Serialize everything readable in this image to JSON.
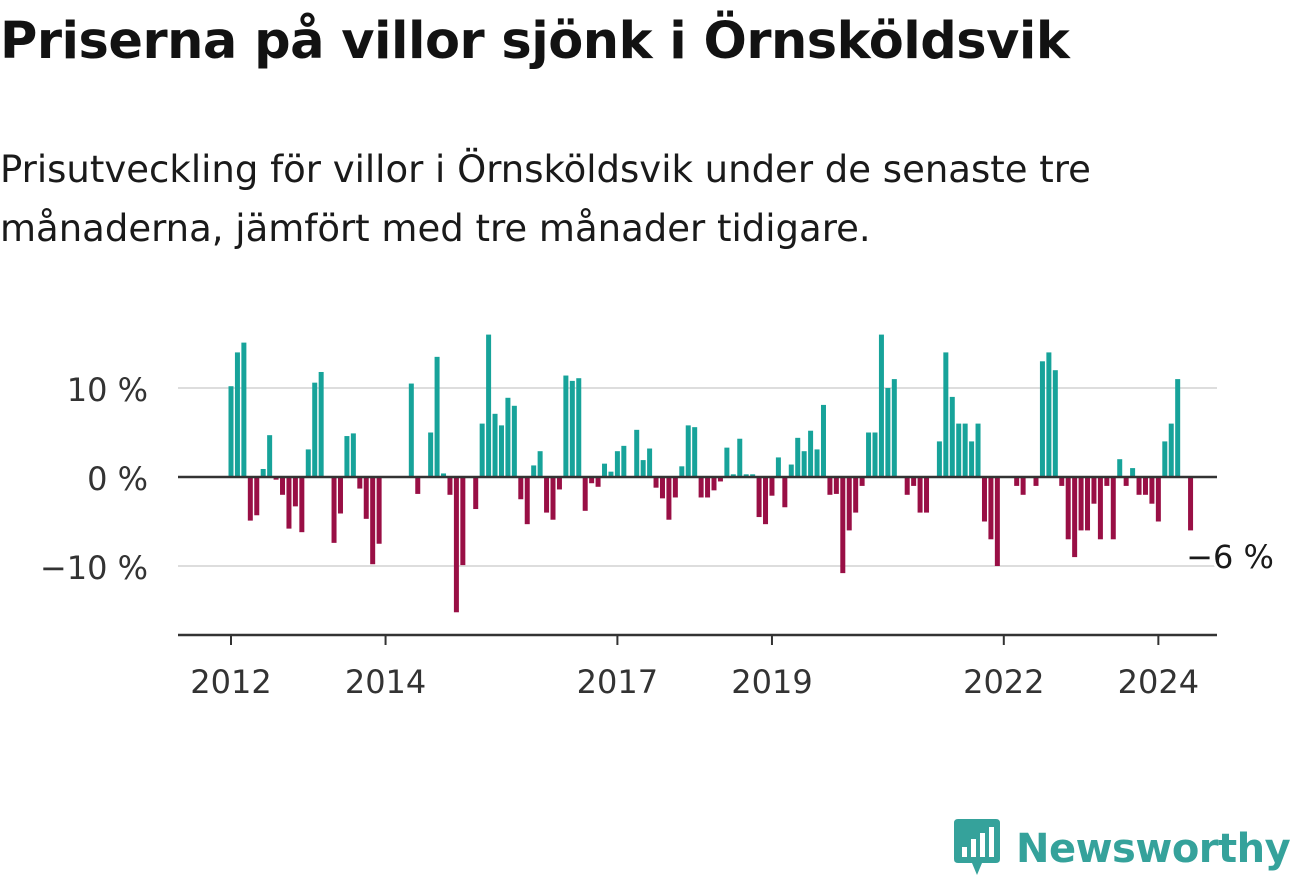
{
  "title": "Priserna på villor sjönk i Örnsköldsvik",
  "subtitle": "Prisutveckling för villor i Örnsköldsvik under de senaste tre månaderna, jämfört med tre månader tidigare.",
  "brand": "Newsworthy",
  "colors": {
    "positive": "#17a39a",
    "negative": "#990f45",
    "brand": "#35a29b",
    "grid": "#dddddd",
    "axis": "#333333"
  },
  "chart_data": {
    "type": "bar",
    "x_start": "2012-01",
    "x_step": "month",
    "ylim": [
      -17,
      17
    ],
    "y_ticks": [
      10,
      0,
      -10
    ],
    "y_tick_labels": [
      "10 %",
      "0 %",
      "−10 %"
    ],
    "x_tick_labels": [
      {
        "label": "2012",
        "year": 2012
      },
      {
        "label": "2014",
        "year": 2014
      },
      {
        "label": "2017",
        "year": 2017
      },
      {
        "label": "2019",
        "year": 2019
      },
      {
        "label": "2022",
        "year": 2022
      },
      {
        "label": "2024",
        "year": 2024
      }
    ],
    "last_value_label": "−6 %",
    "values": [
      10.2,
      14,
      15.1,
      -4.9,
      -4.3,
      0.9,
      4.7,
      -0.3,
      -2,
      -5.8,
      -3.3,
      -6.2,
      3.1,
      10.6,
      11.8,
      0,
      -7.4,
      -4.1,
      4.6,
      4.9,
      -1.3,
      -4.7,
      -9.8,
      -7.5,
      0,
      0,
      0,
      0,
      10.5,
      -1.9,
      0,
      5,
      13.5,
      0.4,
      -2,
      -15.2,
      -9.9,
      0,
      -3.6,
      6,
      16,
      7.1,
      5.8,
      8.9,
      8,
      -2.5,
      -5.3,
      1.3,
      2.9,
      -4,
      -4.8,
      -1.4,
      11.4,
      10.8,
      11.1,
      -3.8,
      -0.7,
      -1.1,
      1.5,
      0.6,
      2.9,
      3.5,
      0,
      5.3,
      1.9,
      3.2,
      -1.2,
      -2.4,
      -4.8,
      -2.3,
      1.2,
      5.8,
      5.6,
      -2.3,
      -2.3,
      -1.5,
      -0.5,
      3.3,
      0.3,
      4.3,
      0.3,
      0.3,
      -4.5,
      -5.3,
      -2.1,
      2.2,
      -3.4,
      1.4,
      4.4,
      2.9,
      5.2,
      3.1,
      8.1,
      -2,
      -1.9,
      -10.8,
      -6,
      -4,
      -1,
      5,
      5,
      16,
      10,
      11,
      0,
      -2,
      -1,
      -4,
      -4,
      0,
      4,
      14,
      9,
      6,
      6,
      4,
      6,
      -5,
      -7,
      -10,
      0,
      0,
      -1,
      -2,
      0,
      -1,
      13,
      14,
      12,
      -1,
      -7,
      -9,
      -6,
      -6,
      -3,
      -7,
      -1,
      -7,
      2,
      -1,
      1,
      -2,
      -2,
      -3,
      -5,
      4,
      6,
      11,
      0,
      -6
    ]
  }
}
